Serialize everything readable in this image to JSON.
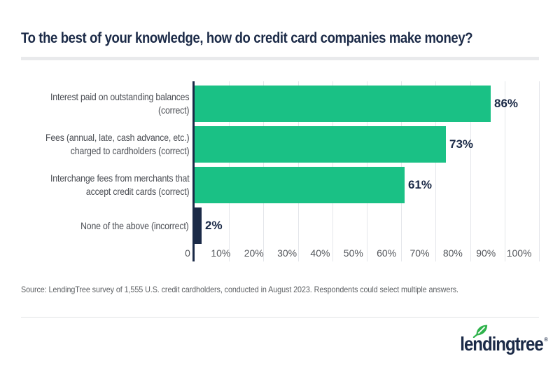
{
  "title": "To the best of your knowledge, how do credit card companies make money?",
  "chart_data": {
    "type": "bar",
    "orientation": "horizontal",
    "title": "To the best of your knowledge, how do credit card companies make money?",
    "categories": [
      "Interest paid on outstanding balances (correct)",
      "Fees (annual, late, cash advance, etc.) charged to cardholders (correct)",
      "Interchange fees from merchants that accept credit cards (correct)",
      "None of the above (incorrect)"
    ],
    "category_lines": [
      [
        "Interest paid on outstanding balances",
        "(correct)"
      ],
      [
        "Fees (annual, late, cash advance, etc.)",
        "charged to cardholders (correct)"
      ],
      [
        "Interchange fees from merchants that",
        "accept credit cards (correct)"
      ],
      [
        "None of the above (incorrect)"
      ]
    ],
    "values": [
      86,
      73,
      61,
      2
    ],
    "value_labels": [
      "86%",
      "73%",
      "61%",
      "2%"
    ],
    "x_ticks": [
      "0",
      "10%",
      "20%",
      "30%",
      "40%",
      "50%",
      "60%",
      "70%",
      "80%",
      "90%",
      "100%"
    ],
    "xlim": [
      0,
      100
    ],
    "grid": true,
    "legend": "none",
    "bar_colors": [
      "#1ac185",
      "#1ac185",
      "#1ac185",
      "#1b2a47"
    ],
    "value_label_color": "#1b2a47"
  },
  "source_note": "Source: LendingTree survey of 1,555 U.S. credit cardholders, conducted in August 2023. Respondents could select multiple answers.",
  "branding": {
    "logo_text": "lendingtree",
    "registered_mark": "®",
    "leaf_color": "#2eb24b",
    "navy": "#1b2a47"
  },
  "colors": {
    "background": "#ffffff",
    "accent_green": "#1ac185",
    "navy": "#1b2a47",
    "gridline": "#e4e6ea",
    "title_divider": "#e9eaec",
    "category_label": "#4b4e54",
    "tick_label": "#54575c",
    "source_text": "#5d6063"
  }
}
